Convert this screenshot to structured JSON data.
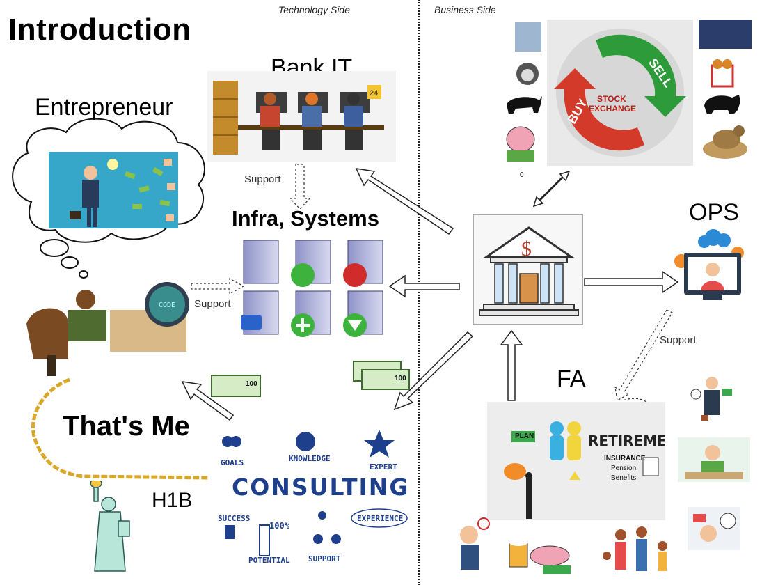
{
  "header": {
    "title": "Introduction"
  },
  "sides": {
    "technology": "Technology Side",
    "business": "Business Side"
  },
  "nodes": {
    "entrepreneur": "Entrepreneur",
    "bank_it": "Bank IT",
    "infra": "Infra, Systems",
    "ops": "OPS",
    "fa": "FA",
    "thats_me": "That's Me",
    "h1b": "H1B"
  },
  "support_labels": {
    "bank_it": "Support",
    "me": "Support",
    "ops": "Support"
  },
  "bank": {
    "symbol": "$"
  },
  "stock": {
    "line1": "STOCK",
    "line2": "EXCHANGE",
    "buy": "BUY",
    "sell": "SELL"
  },
  "stock_small_label": "0",
  "consulting": {
    "word": "CONSULTING",
    "goals": "GOALS",
    "knowledge": "KNOWLEDGE",
    "expert": "EXPERT",
    "success": "SUCCESS",
    "percent": "100%",
    "potential": "POTENTIAL",
    "support": "SUPPORT",
    "experience": "EXPERIENCE"
  },
  "retirement": {
    "word": "RETIREMENT",
    "plan": "PLAN",
    "insurance": "INSURANCE",
    "pension": "Pension",
    "benefits": "Benefits"
  },
  "code_screen": "CODE",
  "money": "100",
  "colors": {
    "bank_blue": "#2a5aa8",
    "sell_green": "#2e9b3a",
    "buy_red": "#d43a2a",
    "consult_blue": "#1d3f8c",
    "chain_gold": "#d9a82a"
  }
}
